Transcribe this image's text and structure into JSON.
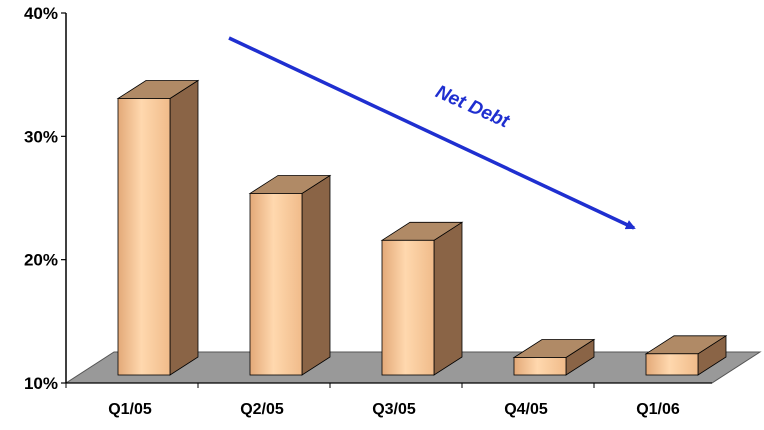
{
  "chart_data": {
    "type": "bar",
    "categories": [
      "Q1/05",
      "Q2/05",
      "Q3/05",
      "Q4/05",
      "Q1/06"
    ],
    "values": [
      35.5,
      27.8,
      24.0,
      14.5,
      14.8
    ],
    "title": "",
    "xlabel": "",
    "ylabel": "",
    "ylim": [
      10,
      40
    ],
    "yticks": [
      10,
      20,
      30,
      40
    ],
    "ytick_labels": [
      "10%",
      "20%",
      "30%",
      "40%"
    ],
    "grid": false,
    "legend": "none",
    "style": "3d",
    "annotation": {
      "text": "Net Debt",
      "kind": "downward-trend-arrow",
      "from_category": "Q1/05",
      "to_category": "Q1/06"
    },
    "colors": {
      "bar_front": "#f7c89a",
      "bar_side": "#8a6446",
      "bar_top": "#b08a66",
      "floor": "#999999",
      "annotation": "#1f2fd0",
      "axis": "#000000"
    }
  }
}
